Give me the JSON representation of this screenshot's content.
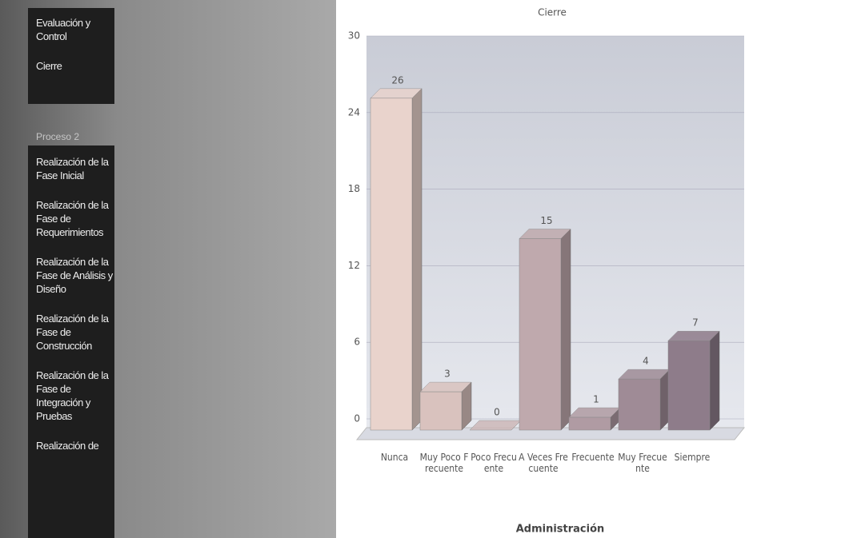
{
  "sidebar": {
    "group1": [
      "Evaluación y Control",
      "Cierre"
    ],
    "group2_title": "Proceso 2",
    "group2": [
      "Realización de la Fase Inicial",
      "Realización de la Fase de Requerimientos",
      "Realización de la Fase de Análisis y Diseño",
      "Realización de la Fase de Construcción",
      "Realización de la Fase de Integración y Pruebas",
      "Realización de"
    ]
  },
  "chart_data": {
    "type": "bar3d",
    "title": "Cierre",
    "x_label": "Administración",
    "categories": [
      "Nunca",
      "Muy Poco Frecuente",
      "Poco Frecuente",
      "A Veces Frecuente",
      "Frecuente",
      "Muy Frecuente",
      "Siempre"
    ],
    "values": [
      26,
      3,
      0,
      15,
      1,
      4,
      7
    ],
    "colors": [
      "#e9d3cc",
      "#d9c2be",
      "#cdb8b8",
      "#bfa9ad",
      "#b09ba3",
      "#9f8b96",
      "#8e7c8a"
    ],
    "ylim": [
      0,
      30
    ],
    "yticks": [
      0,
      6,
      12,
      18,
      24,
      30
    ],
    "grid": true
  }
}
